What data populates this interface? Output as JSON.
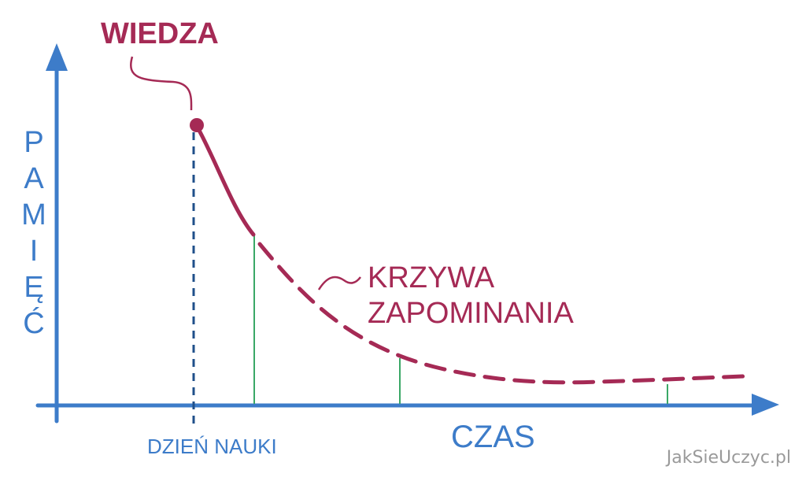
{
  "title": "WIEDZA",
  "y_axis_label": "PAMIĘĆ",
  "x_axis_label": "CZAS",
  "start_label": "DZIEŃ NAUKI",
  "curve_label": [
    "KRZYWA",
    "ZAPOMINANIA"
  ],
  "watermark": "JakSieUczyc.pl"
}
